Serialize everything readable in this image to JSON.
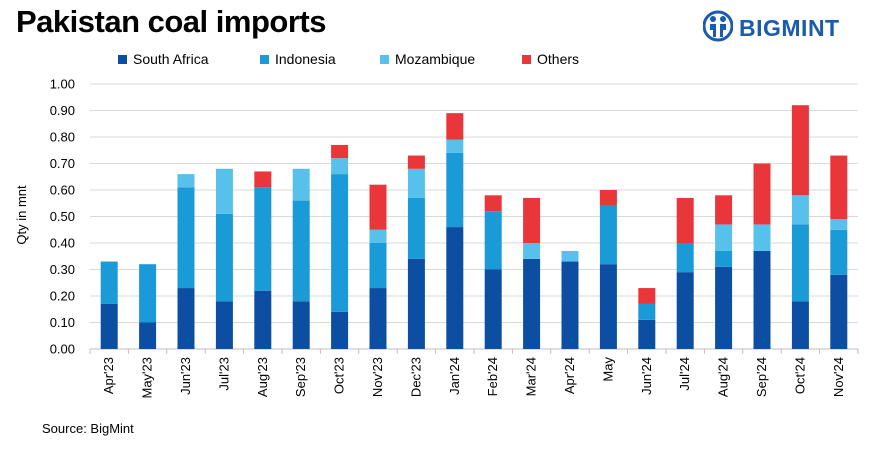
{
  "header": {
    "title": "Pakistan coal imports",
    "brand": "BIGMINT"
  },
  "footer": {
    "source": "Source: BigMint"
  },
  "chart_data": {
    "type": "bar",
    "stacked": true,
    "ylabel": "Qty in mnt",
    "ylim": [
      0,
      1.0
    ],
    "yticks": [
      "0.00",
      "0.10",
      "0.20",
      "0.30",
      "0.40",
      "0.50",
      "0.60",
      "0.70",
      "0.80",
      "0.90",
      "1.00"
    ],
    "grid": true,
    "legend_position": "top",
    "categories": [
      "Apr'23",
      "May'23",
      "Jun'23",
      "Jul'23",
      "Aug'23",
      "Sep'23",
      "Oct'23",
      "Nov'23",
      "Dec'23",
      "Jan'24",
      "Feb'24",
      "Mar'24",
      "Apr'24",
      "May",
      "Jun'24",
      "Jul'24",
      "Aug'24",
      "Sep'24",
      "Oct'24",
      "Nov'24"
    ],
    "series": [
      {
        "name": "South Africa",
        "color": "#0b4ea2",
        "values": [
          0.17,
          0.1,
          0.23,
          0.18,
          0.22,
          0.18,
          0.14,
          0.23,
          0.34,
          0.46,
          0.3,
          0.34,
          0.33,
          0.32,
          0.11,
          0.29,
          0.31,
          0.37,
          0.18,
          0.28
        ]
      },
      {
        "name": "Indonesia",
        "color": "#1a9ad6",
        "values": [
          0.16,
          0.22,
          0.38,
          0.33,
          0.39,
          0.38,
          0.52,
          0.17,
          0.23,
          0.28,
          0.22,
          0.0,
          0.0,
          0.22,
          0.06,
          0.11,
          0.06,
          0.0,
          0.29,
          0.17
        ]
      },
      {
        "name": "Mozambique",
        "color": "#57c1ec",
        "values": [
          0.0,
          0.0,
          0.05,
          0.17,
          0.0,
          0.12,
          0.06,
          0.05,
          0.11,
          0.05,
          0.0,
          0.06,
          0.04,
          0.0,
          0.0,
          0.0,
          0.1,
          0.1,
          0.11,
          0.04
        ]
      },
      {
        "name": "Others",
        "color": "#e8363a",
        "values": [
          0.0,
          0.0,
          0.0,
          0.0,
          0.06,
          0.0,
          0.05,
          0.17,
          0.05,
          0.1,
          0.06,
          0.17,
          0.0,
          0.06,
          0.06,
          0.17,
          0.11,
          0.23,
          0.34,
          0.24
        ]
      }
    ]
  }
}
